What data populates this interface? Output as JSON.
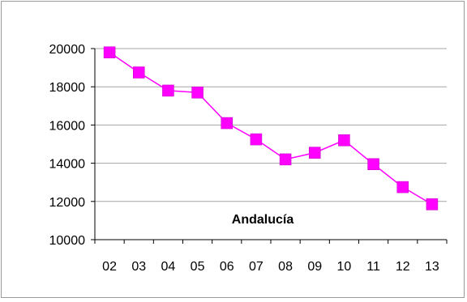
{
  "chart_data": {
    "type": "line",
    "title": "Andalucía",
    "xlabel": "",
    "ylabel": "",
    "categories": [
      "02",
      "03",
      "04",
      "05",
      "06",
      "07",
      "08",
      "09",
      "10",
      "11",
      "12",
      "13"
    ],
    "series": [
      {
        "values": [
          19800,
          18750,
          17800,
          17700,
          16100,
          15250,
          14200,
          14550,
          15200,
          13950,
          12750,
          11850
        ],
        "color": "#ff00ff",
        "marker": "square"
      }
    ],
    "ylim": [
      10000,
      20000
    ],
    "yticks": [
      "10000",
      "12000",
      "14000",
      "16000",
      "18000",
      "20000"
    ],
    "grid": "horizontal",
    "legend": "none"
  }
}
